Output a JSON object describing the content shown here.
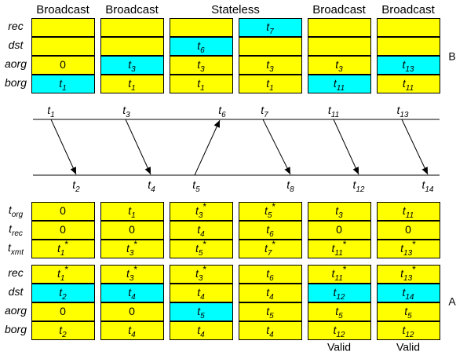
{
  "headers": [
    "Broadcast",
    "Broadcast",
    "Stateless",
    "Broadcast",
    "Broadcast"
  ],
  "colors": {
    "normal": "#ffff00",
    "highlight": "#00ffff"
  },
  "blocks": [
    {
      "name": "B",
      "row_labels": [
        {
          "base": "rec"
        },
        {
          "base": "dst"
        },
        {
          "base": "aorg"
        },
        {
          "base": "borg"
        }
      ],
      "columns": [
        [
          {},
          {},
          {
            "base": "0"
          },
          {
            "base": "t",
            "sub": "1",
            "highlight": true
          }
        ],
        [
          {},
          {},
          {
            "base": "t",
            "sub": "3",
            "highlight": true
          },
          {
            "base": "t",
            "sub": "1"
          }
        ],
        [
          {},
          {
            "base": "t",
            "sub": "6",
            "highlight": true
          },
          {
            "base": "t",
            "sub": "3"
          },
          {
            "base": "t",
            "sub": "1"
          }
        ],
        [
          {
            "base": "t",
            "sub": "7",
            "highlight": true
          },
          {},
          {
            "base": "t",
            "sub": "3"
          },
          {
            "base": "t",
            "sub": "1"
          }
        ],
        [
          {},
          {},
          {
            "base": "t",
            "sub": "3"
          },
          {
            "base": "t",
            "sub": "11",
            "highlight": true
          }
        ],
        [
          {},
          {},
          {
            "base": "t",
            "sub": "13",
            "highlight": true
          },
          {
            "base": "t",
            "sub": "11"
          }
        ]
      ]
    },
    {
      "row_labels": [
        {
          "base": "t",
          "sub": "org"
        },
        {
          "base": "t",
          "sub": "rec"
        },
        {
          "base": "t",
          "sub": "xmt"
        }
      ],
      "columns": [
        [
          {
            "base": "0"
          },
          {
            "base": "0"
          },
          {
            "base": "t",
            "sub": "1",
            "sup": "*"
          }
        ],
        [
          {
            "base": "t",
            "sub": "1"
          },
          {
            "base": "0"
          },
          {
            "base": "t",
            "sub": "3",
            "sup": "*"
          }
        ],
        [
          {
            "base": "t",
            "sub": "3",
            "sup": "*"
          },
          {
            "base": "t",
            "sub": "4"
          },
          {
            "base": "t",
            "sub": "5",
            "sup": "*"
          }
        ],
        [
          {
            "base": "t",
            "sub": "5",
            "sup": "*"
          },
          {
            "base": "t",
            "sub": "6"
          },
          {
            "base": "t",
            "sub": "7",
            "sup": "*"
          }
        ],
        [
          {
            "base": "t",
            "sub": "3"
          },
          {
            "base": "0"
          },
          {
            "base": "t",
            "sub": "11",
            "sup": "*"
          }
        ],
        [
          {
            "base": "t",
            "sub": "11"
          },
          {
            "base": "0"
          },
          {
            "base": "t",
            "sub": "13",
            "sup": "*"
          }
        ]
      ]
    },
    {
      "name": "A",
      "row_labels": [
        {
          "base": "rec"
        },
        {
          "base": "dst"
        },
        {
          "base": "aorg"
        },
        {
          "base": "borg"
        }
      ],
      "columns": [
        [
          {
            "base": "t",
            "sub": "1",
            "sup": "*"
          },
          {
            "base": "t",
            "sub": "2",
            "highlight": true
          },
          {
            "base": "0"
          },
          {
            "base": "t",
            "sub": "2"
          }
        ],
        [
          {
            "base": "t",
            "sub": "3",
            "sup": "*"
          },
          {
            "base": "t",
            "sub": "4",
            "highlight": true
          },
          {
            "base": "0"
          },
          {
            "base": "t",
            "sub": "4"
          }
        ],
        [
          {
            "base": "t",
            "sub": "3",
            "sup": "*"
          },
          {
            "base": "t",
            "sub": "4"
          },
          {
            "base": "t",
            "sub": "5",
            "highlight": true
          },
          {
            "base": "t",
            "sub": "4"
          }
        ],
        [
          {
            "base": "t",
            "sub": "6"
          },
          {
            "base": "t",
            "sub": "4"
          },
          {
            "base": "t",
            "sub": "5"
          },
          {
            "base": "t",
            "sub": "4"
          }
        ],
        [
          {
            "base": "t",
            "sub": "11",
            "sup": "*"
          },
          {
            "base": "t",
            "sub": "12",
            "highlight": true
          },
          {
            "base": "t",
            "sub": "5"
          },
          {
            "base": "t",
            "sub": "12"
          }
        ],
        [
          {
            "base": "t",
            "sub": "13",
            "sup": "*"
          },
          {
            "base": "t",
            "sub": "14",
            "highlight": true
          },
          {
            "base": "t",
            "sub": "5"
          },
          {
            "base": "t",
            "sub": "12"
          }
        ]
      ]
    }
  ],
  "timeline": {
    "top_labels": [
      {
        "base": "t",
        "sub": "1"
      },
      {
        "base": "t",
        "sub": "3"
      },
      {
        "base": "t",
        "sub": "6"
      },
      {
        "base": "t",
        "sub": "7"
      },
      {
        "base": "t",
        "sub": "11"
      },
      {
        "base": "t",
        "sub": "13"
      }
    ],
    "bottom_labels": [
      {
        "base": "t",
        "sub": "2"
      },
      {
        "base": "t",
        "sub": "4"
      },
      {
        "base": "t",
        "sub": "5"
      },
      {
        "base": "t",
        "sub": "8"
      },
      {
        "base": "t",
        "sub": "12"
      },
      {
        "base": "t",
        "sub": "14"
      }
    ]
  },
  "valid_labels": [
    "Valid",
    "Valid"
  ]
}
